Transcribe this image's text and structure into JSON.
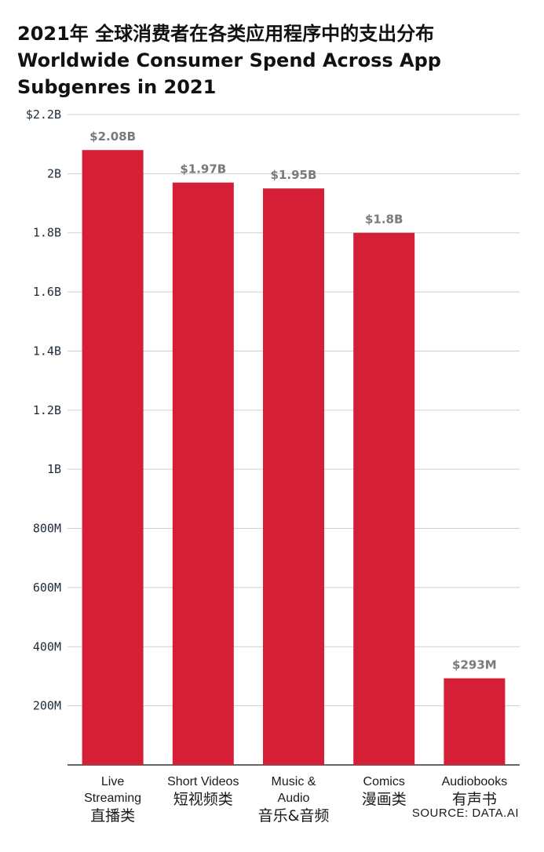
{
  "title_cn": "2021年 全球消费者在各类应用程序中的支出分布",
  "title_en_line1": "Worldwide Consumer Spend Across App",
  "title_en_line2": "Subgenres in 2021",
  "source": "SOURCE: DATA.AI",
  "colors": {
    "bar": "#d41f37",
    "grid": "#cfcfcf",
    "axis": "#333333"
  },
  "chart_data": {
    "type": "bar",
    "title": "2021年 全球消费者在各类应用程序中的支出分布 Worldwide Consumer Spend Across App Subgenres in 2021",
    "categories": [
      "Live Streaming",
      "Short Videos",
      "Music & Audio",
      "Comics",
      "Audiobooks"
    ],
    "category_labels": [
      {
        "en": [
          "Live",
          "Streaming"
        ],
        "cn": "直播类"
      },
      {
        "en": [
          "Short Videos"
        ],
        "cn": "短视频类"
      },
      {
        "en": [
          "Music &",
          "Audio"
        ],
        "cn": "音乐&音频"
      },
      {
        "en": [
          "Comics"
        ],
        "cn": "漫画类"
      },
      {
        "en": [
          "Audiobooks"
        ],
        "cn": "有声书"
      }
    ],
    "values": [
      2080000000,
      1970000000,
      1950000000,
      1800000000,
      293000000
    ],
    "value_labels": [
      "$2.08B",
      "$1.97B",
      "$1.95B",
      "$1.8B",
      "$293M"
    ],
    "ylim": [
      0,
      2200000000
    ],
    "yticks": [
      200000000,
      400000000,
      600000000,
      800000000,
      1000000000,
      1200000000,
      1400000000,
      1600000000,
      1800000000,
      2000000000,
      2200000000
    ],
    "ytick_labels": [
      "200M",
      "400M",
      "600M",
      "800M",
      "1B",
      "1.2B",
      "1.4B",
      "1.6B",
      "1.8B",
      "2B",
      "$2.2B"
    ],
    "grid": true,
    "xlabel": "",
    "ylabel": ""
  }
}
